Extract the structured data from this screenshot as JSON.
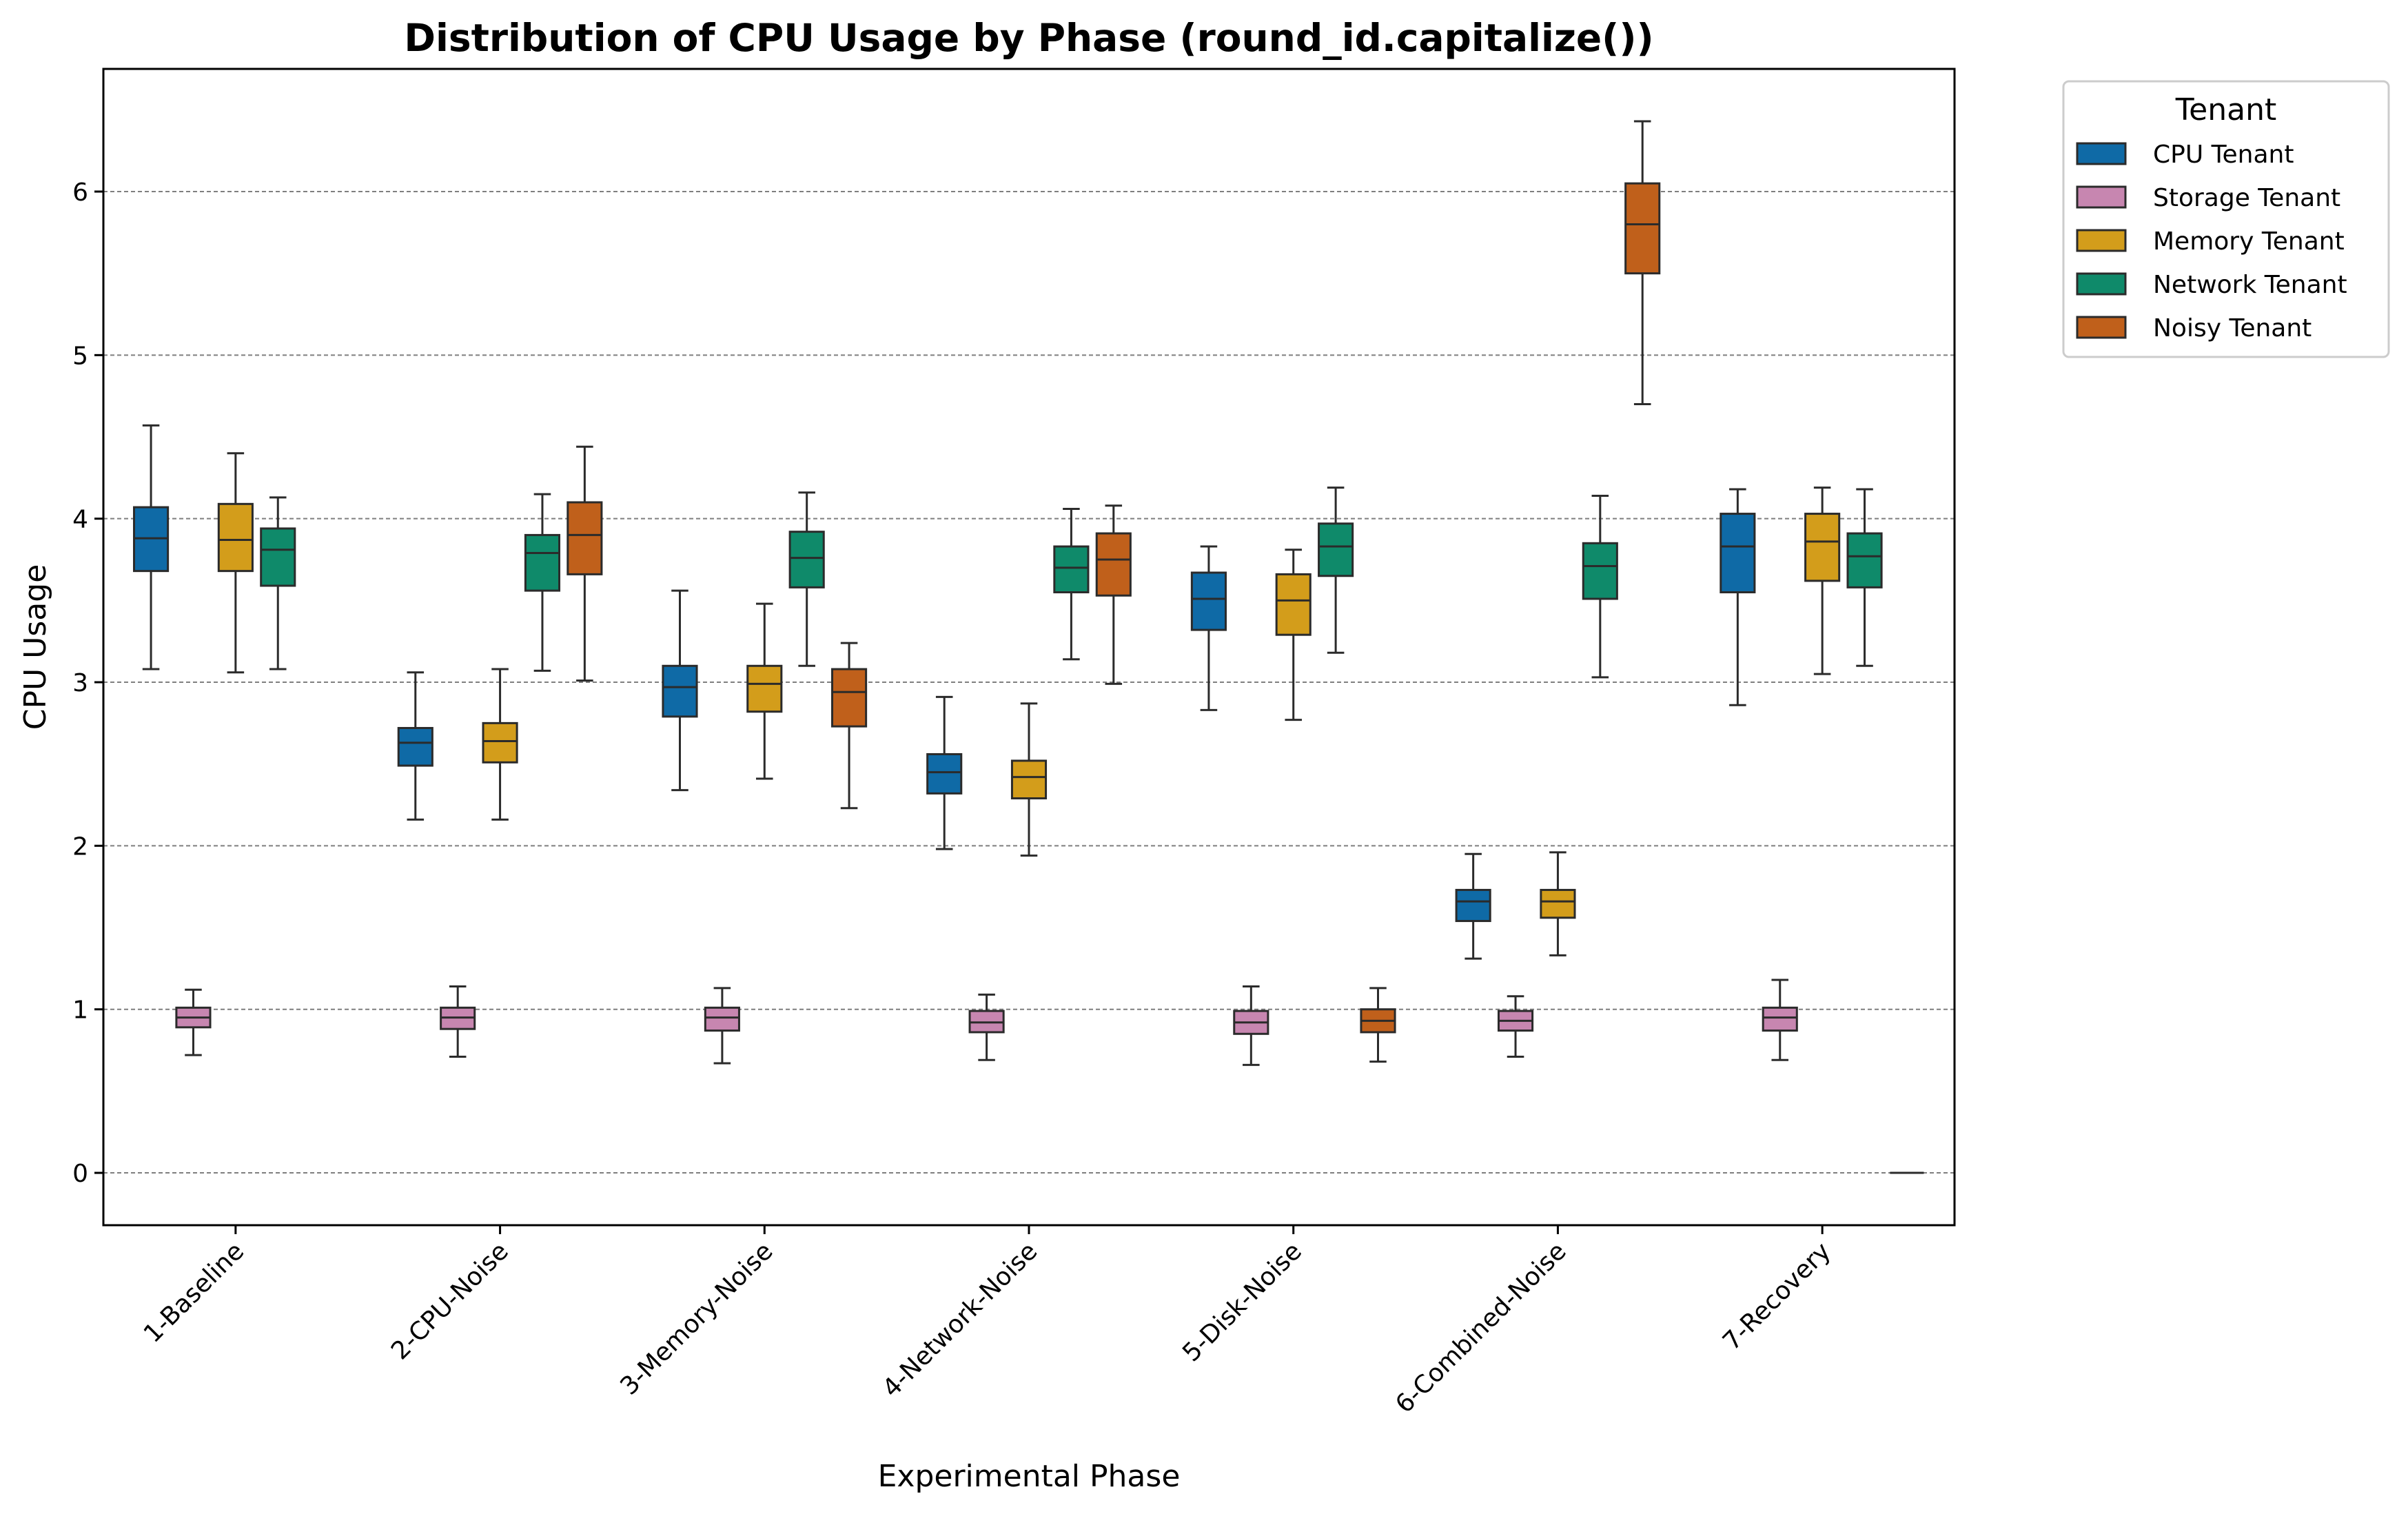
{
  "chart_data": {
    "type": "box",
    "title": "Distribution of CPU Usage by Phase (round_id.capitalize())",
    "xlabel": "Experimental Phase",
    "ylabel": "CPU Usage",
    "ylim": [
      -0.32,
      6.75
    ],
    "yticks": [
      0,
      1,
      2,
      3,
      4,
      5,
      6
    ],
    "grid": "horizontal dashed",
    "legend": {
      "title": "Tenant",
      "placement": "outside-top-right"
    },
    "categories": [
      "1-Baseline",
      "2-CPU-Noise",
      "3-Memory-Noise",
      "4-Network-Noise",
      "5-Disk-Noise",
      "6-Combined-Noise",
      "7-Recovery"
    ],
    "series": [
      {
        "name": "CPU Tenant",
        "color": "#0f6aa6",
        "boxes": [
          {
            "min": 3.08,
            "q1": 3.68,
            "median": 3.88,
            "q3": 4.07,
            "max": 4.57
          },
          {
            "min": 2.16,
            "q1": 2.49,
            "median": 2.63,
            "q3": 2.72,
            "max": 3.06
          },
          {
            "min": 2.34,
            "q1": 2.79,
            "median": 2.97,
            "q3": 3.1,
            "max": 3.56
          },
          {
            "min": 1.98,
            "q1": 2.32,
            "median": 2.45,
            "q3": 2.56,
            "max": 2.91
          },
          {
            "min": 2.83,
            "q1": 3.32,
            "median": 3.51,
            "q3": 3.67,
            "max": 3.83
          },
          {
            "min": 1.31,
            "q1": 1.54,
            "median": 1.66,
            "q3": 1.73,
            "max": 1.95
          },
          {
            "min": 2.86,
            "q1": 3.55,
            "median": 3.83,
            "q3": 4.03,
            "max": 4.18
          }
        ]
      },
      {
        "name": "Storage Tenant",
        "color": "#c786b0",
        "boxes": [
          {
            "min": 0.72,
            "q1": 0.89,
            "median": 0.95,
            "q3": 1.01,
            "max": 1.12
          },
          {
            "min": 0.71,
            "q1": 0.88,
            "median": 0.95,
            "q3": 1.01,
            "max": 1.14
          },
          {
            "min": 0.67,
            "q1": 0.87,
            "median": 0.95,
            "q3": 1.01,
            "max": 1.13
          },
          {
            "min": 0.69,
            "q1": 0.86,
            "median": 0.92,
            "q3": 0.99,
            "max": 1.09
          },
          {
            "min": 0.66,
            "q1": 0.85,
            "median": 0.92,
            "q3": 0.99,
            "max": 1.14
          },
          {
            "min": 0.71,
            "q1": 0.87,
            "median": 0.93,
            "q3": 0.99,
            "max": 1.08
          },
          {
            "min": 0.69,
            "q1": 0.87,
            "median": 0.95,
            "q3": 1.01,
            "max": 1.18
          }
        ]
      },
      {
        "name": "Memory Tenant",
        "color": "#d39d1b",
        "boxes": [
          {
            "min": 3.06,
            "q1": 3.68,
            "median": 3.87,
            "q3": 4.09,
            "max": 4.4
          },
          {
            "min": 2.16,
            "q1": 2.51,
            "median": 2.64,
            "q3": 2.75,
            "max": 3.08
          },
          {
            "min": 2.41,
            "q1": 2.82,
            "median": 2.99,
            "q3": 3.1,
            "max": 3.48
          },
          {
            "min": 1.94,
            "q1": 2.29,
            "median": 2.42,
            "q3": 2.52,
            "max": 2.87
          },
          {
            "min": 2.77,
            "q1": 3.29,
            "median": 3.5,
            "q3": 3.66,
            "max": 3.81
          },
          {
            "min": 1.33,
            "q1": 1.56,
            "median": 1.66,
            "q3": 1.73,
            "max": 1.96
          },
          {
            "min": 3.05,
            "q1": 3.62,
            "median": 3.86,
            "q3": 4.03,
            "max": 4.19
          }
        ]
      },
      {
        "name": "Network Tenant",
        "color": "#0f8a6a",
        "boxes": [
          {
            "min": 3.08,
            "q1": 3.59,
            "median": 3.81,
            "q3": 3.94,
            "max": 4.13
          },
          {
            "min": 3.07,
            "q1": 3.56,
            "median": 3.79,
            "q3": 3.9,
            "max": 4.15
          },
          {
            "min": 3.1,
            "q1": 3.58,
            "median": 3.76,
            "q3": 3.92,
            "max": 4.16
          },
          {
            "min": 3.14,
            "q1": 3.55,
            "median": 3.7,
            "q3": 3.83,
            "max": 4.06
          },
          {
            "min": 3.18,
            "q1": 3.65,
            "median": 3.83,
            "q3": 3.97,
            "max": 4.19
          },
          {
            "min": 3.03,
            "q1": 3.51,
            "median": 3.71,
            "q3": 3.85,
            "max": 4.14
          },
          {
            "min": 3.1,
            "q1": 3.58,
            "median": 3.77,
            "q3": 3.91,
            "max": 4.18
          }
        ]
      },
      {
        "name": "Noisy Tenant",
        "color": "#c0601b",
        "boxes": [
          null,
          {
            "min": 3.01,
            "q1": 3.66,
            "median": 3.9,
            "q3": 4.1,
            "max": 4.44
          },
          {
            "min": 2.23,
            "q1": 2.73,
            "median": 2.94,
            "q3": 3.08,
            "max": 3.24
          },
          {
            "min": 2.99,
            "q1": 3.53,
            "median": 3.75,
            "q3": 3.91,
            "max": 4.08
          },
          {
            "min": 0.68,
            "q1": 0.86,
            "median": 0.93,
            "q3": 1.0,
            "max": 1.13
          },
          {
            "min": 4.7,
            "q1": 5.5,
            "median": 5.8,
            "q3": 6.05,
            "max": 6.43
          },
          {
            "min": 0.0,
            "q1": 0.0,
            "median": 0.0,
            "q3": 0.0,
            "max": 0.0
          }
        ]
      }
    ]
  }
}
